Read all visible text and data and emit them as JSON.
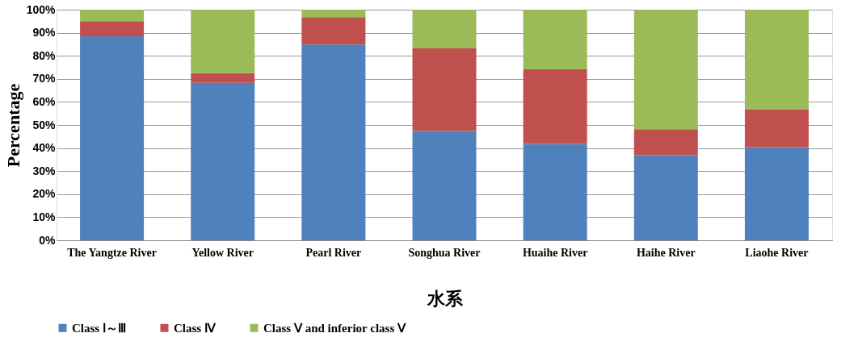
{
  "chart_data": {
    "type": "bar",
    "stacked": true,
    "xlabel": "水系",
    "ylabel": "Percentage",
    "categories": [
      "The Yangtze River",
      "Yellow River",
      "Pearl River",
      "Songhua River",
      "Huaihe River",
      "Haihe River",
      "Liaohe River"
    ],
    "series": [
      {
        "name": "Class Ⅰ～Ⅲ",
        "color": "#4f81bd",
        "values": [
          88.5,
          68.3,
          84.9,
          47.4,
          41.8,
          37.0,
          40.4
        ]
      },
      {
        "name": "Class Ⅳ",
        "color": "#c0504d",
        "values": [
          6.5,
          4.2,
          11.9,
          35.8,
          32.3,
          11.2,
          16.2
        ]
      },
      {
        "name": "Class Ⅴ and inferior class Ⅴ",
        "color": "#9bbb59",
        "values": [
          5.0,
          27.5,
          3.2,
          16.8,
          25.9,
          51.8,
          43.4
        ]
      }
    ],
    "ylim": [
      0,
      100
    ],
    "yticks": [
      {
        "value": 0,
        "label": "0%"
      },
      {
        "value": 10,
        "label": "10%"
      },
      {
        "value": 20,
        "label": "20%"
      },
      {
        "value": 30,
        "label": "30%"
      },
      {
        "value": 40,
        "label": "40%"
      },
      {
        "value": 50,
        "label": "50%"
      },
      {
        "value": 60,
        "label": "60%"
      },
      {
        "value": 70,
        "label": "70%"
      },
      {
        "value": 80,
        "label": "80%"
      },
      {
        "value": 90,
        "label": "90%"
      },
      {
        "value": 100,
        "label": "100%"
      }
    ],
    "grid": "y",
    "legend": "bottom"
  }
}
